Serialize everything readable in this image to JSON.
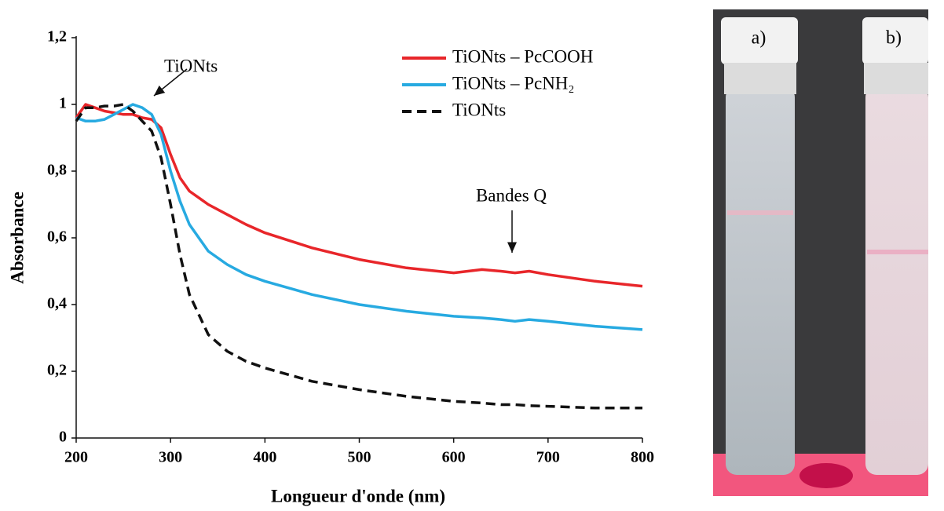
{
  "chart_data": {
    "type": "line",
    "x_label": "Longueur d'onde (nm)",
    "y_label": "Absorbance",
    "x": [
      200,
      210,
      220,
      230,
      240,
      250,
      260,
      270,
      280,
      290,
      300,
      310,
      320,
      340,
      360,
      380,
      400,
      450,
      500,
      550,
      600,
      630,
      650,
      665,
      680,
      700,
      750,
      800
    ],
    "series": [
      {
        "name": "TiONts – PcCOOH",
        "color": "#e8262a",
        "dash": false,
        "values": [
          0.96,
          1.0,
          0.99,
          0.98,
          0.975,
          0.97,
          0.97,
          0.96,
          0.955,
          0.93,
          0.85,
          0.78,
          0.74,
          0.7,
          0.67,
          0.64,
          0.615,
          0.57,
          0.535,
          0.51,
          0.495,
          0.505,
          0.5,
          0.495,
          0.5,
          0.49,
          0.47,
          0.455
        ]
      },
      {
        "name": "TiONts – PcNH₂",
        "color": "#27aae1",
        "dash": false,
        "values": [
          0.96,
          0.95,
          0.95,
          0.955,
          0.97,
          0.985,
          1.0,
          0.99,
          0.97,
          0.91,
          0.8,
          0.71,
          0.64,
          0.56,
          0.52,
          0.49,
          0.47,
          0.43,
          0.4,
          0.38,
          0.365,
          0.36,
          0.355,
          0.35,
          0.355,
          0.35,
          0.335,
          0.325
        ]
      },
      {
        "name": "TiONts",
        "color": "#111111",
        "dash": true,
        "values": [
          0.95,
          0.99,
          0.99,
          0.995,
          0.995,
          1.0,
          0.98,
          0.95,
          0.92,
          0.84,
          0.7,
          0.55,
          0.43,
          0.31,
          0.26,
          0.23,
          0.21,
          0.17,
          0.145,
          0.125,
          0.11,
          0.105,
          0.1,
          0.1,
          0.097,
          0.095,
          0.09,
          0.09
        ]
      }
    ],
    "xlim": [
      200,
      800
    ],
    "xticks": [
      200,
      300,
      400,
      500,
      600,
      700,
      800
    ],
    "ylim": [
      0,
      1.2
    ],
    "yticks": [
      0,
      {
        "value": 0.2,
        "label": "0,2"
      },
      {
        "value": 0.4,
        "label": "0,4"
      },
      {
        "value": 0.6,
        "label": "0,6"
      },
      {
        "value": 0.8,
        "label": "0,8"
      },
      1,
      {
        "value": 1.2,
        "label": "1,2"
      }
    ],
    "grid": false,
    "legend": "upper right",
    "annotations": [
      "TiONts",
      "Bandes Q"
    ]
  },
  "photo": {
    "labels": [
      "a)",
      "b)"
    ]
  }
}
